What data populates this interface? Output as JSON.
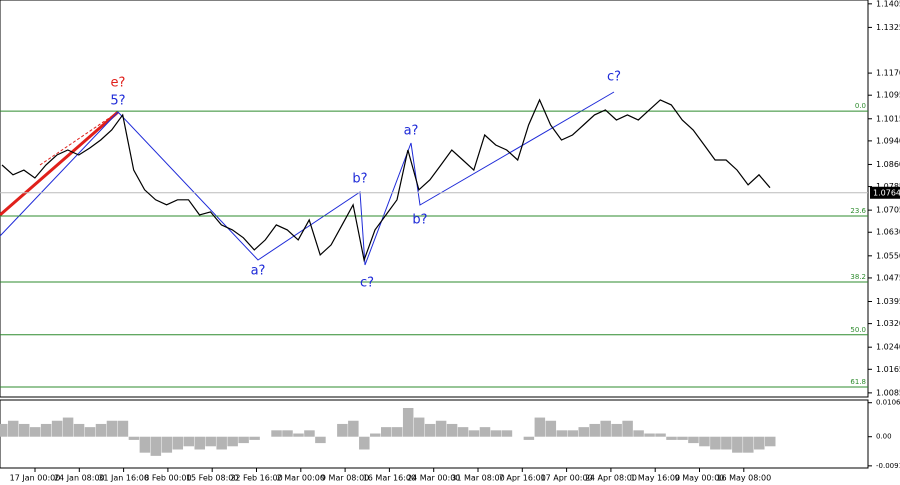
{
  "chart_data": {
    "type": "line",
    "series": [
      {
        "color": "#000000",
        "values": [
          1.0858,
          1.0825,
          1.0841,
          1.0814,
          1.0858,
          1.0892,
          1.0909,
          1.0892,
          1.0916,
          1.0943,
          1.0977,
          1.1028,
          1.0841,
          1.0774,
          1.074,
          1.0723,
          1.074,
          1.074,
          1.0689,
          1.0699,
          1.0655,
          1.0638,
          1.0611,
          1.057,
          1.0604,
          1.0655,
          1.0638,
          1.0604,
          1.0672,
          1.0553,
          1.0587,
          1.0655,
          1.0723,
          1.0536,
          1.0638,
          1.0689,
          1.074,
          1.0909,
          1.0774,
          1.0808,
          1.0858,
          1.0909,
          1.0875,
          1.0841,
          1.096,
          1.0926,
          1.0909,
          1.0875,
          1.0994,
          1.1079,
          1.0994,
          1.0943,
          1.096,
          1.0994,
          1.1028,
          1.1045,
          1.1011,
          1.1028,
          1.1011,
          1.1045,
          1.1079,
          1.1062,
          1.1011,
          1.0977,
          1.0926,
          1.0875,
          1.0875,
          1.0841,
          1.0791,
          1.0825,
          1.0781
        ]
      }
    ],
    "ylim": [
      1.0071,
      1.1418
    ],
    "yticks": [
      1.1405,
      1.1325,
      {
        "value": 1.117,
        "label": "1.1170"
      },
      1.1095,
      1.1015,
      {
        "value": 1.094,
        "label": "1.0940"
      },
      {
        "value": 1.086,
        "label": "1.0860"
      },
      1.0785,
      1.0705,
      {
        "value": 1.063,
        "label": "1.0630"
      },
      {
        "value": 1.055,
        "label": "1.0550"
      },
      1.0475,
      1.0395,
      {
        "value": 1.032,
        "label": "1.0320"
      },
      {
        "value": 1.024,
        "label": "1.0240"
      },
      1.0165,
      1.0085
    ],
    "current_price": 1.0764,
    "x_labels": [
      "17 Jan 00:00",
      "24 Jan 08:00",
      "31 Jan 16:00",
      "8 Feb 00:00",
      "15 Feb 08:00",
      "22 Feb 16:00",
      "2 Mar 00:00",
      "9 Mar 08:00",
      "16 Mar 16:00",
      "24 Mar 00:00",
      "31 Mar 08:00",
      "7 Apr 16:00",
      "17 Apr 00:00",
      "24 Apr 08:00",
      "1 May 16:00",
      "9 May 00:00",
      "16 May 08:00"
    ],
    "fib_levels": [
      {
        "label": "0.0",
        "value": 1.1041
      },
      {
        "label": "23.6",
        "value": 1.0685
      },
      {
        "label": "38.2",
        "value": 1.0461
      },
      {
        "label": "50.0",
        "value": 1.0282
      },
      {
        "label": "61.8",
        "value": 1.0105
      }
    ],
    "annotations": [
      {
        "text": "e?",
        "color": "#e0201b"
      },
      {
        "text": "5?",
        "color": "#1f2bd8"
      },
      {
        "text": "a?",
        "color": "#1f2bd8"
      },
      {
        "text": "b?",
        "color": "#1f2bd8"
      },
      {
        "text": "c?",
        "color": "#1f2bd8"
      },
      {
        "text": "a?",
        "color": "#1f2bd8"
      },
      {
        "text": "b?",
        "color": "#1f2bd8"
      },
      {
        "text": "c?",
        "color": "#1f2bd8"
      }
    ],
    "oscillator": {
      "type": "bar",
      "color": "#b4b4b4",
      "values": [
        0.004,
        0.005,
        0.004,
        0.003,
        0.004,
        0.005,
        0.006,
        0.004,
        0.003,
        0.004,
        0.005,
        0.005,
        -0.001,
        -0.005,
        -0.006,
        -0.005,
        -0.004,
        -0.003,
        -0.004,
        -0.003,
        -0.004,
        -0.003,
        -0.002,
        -0.001,
        0.0,
        0.002,
        0.002,
        0.001,
        0.002,
        -0.002,
        0.0,
        0.004,
        0.005,
        -0.004,
        0.001,
        0.003,
        0.003,
        0.009,
        0.006,
        0.004,
        0.005,
        0.004,
        0.003,
        0.002,
        0.003,
        0.002,
        0.002,
        0.0,
        -0.001,
        0.006,
        0.005,
        0.002,
        0.002,
        0.003,
        0.004,
        0.005,
        0.004,
        0.005,
        0.002,
        0.001,
        0.001,
        -0.001,
        -0.001,
        -0.002,
        -0.003,
        -0.004,
        -0.004,
        -0.005,
        -0.005,
        -0.004,
        -0.003
      ],
      "ylim": [
        -0.0098,
        0.0115
      ],
      "yticks": [
        0.01065,
        {
          "value": 0,
          "label": "0.00"
        },
        -0.00913
      ]
    }
  }
}
